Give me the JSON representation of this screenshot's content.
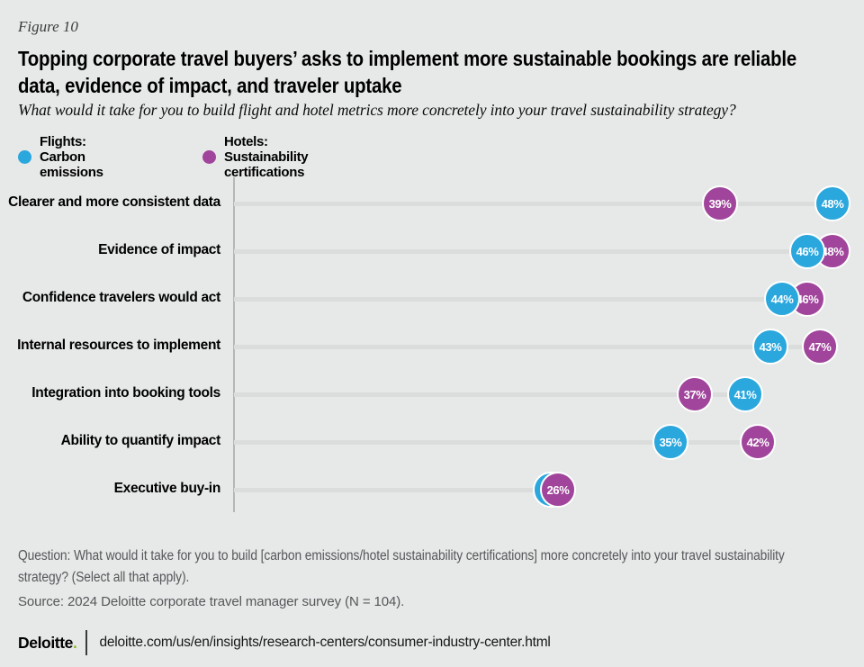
{
  "header": {
    "figure_label": "Figure 10",
    "title": "Topping corporate travel buyers’ asks to implement more sustainable bookings are reliable\ndata, evidence of impact, and traveler uptake",
    "subtitle": "What would it take for you to build flight and hotel metrics more concretely into your travel sustainability strategy?"
  },
  "legend": {
    "flights": "Flights: Carbon emissions",
    "hotels": "Hotels: Sustainability certifications"
  },
  "colors": {
    "background": "#e7e8e8",
    "flights_blue": "#2aa7dd",
    "hotels_purple": "#a0459b",
    "track_gray": "#dbdcdc",
    "axis_gray": "#b5b6b6",
    "brand_green": "#86bc25"
  },
  "chart_data": {
    "type": "scatter",
    "subtype": "dumbbell-dot-plot",
    "unit": "%",
    "xlim": [
      0,
      50
    ],
    "grid": false,
    "legend_position": "top-left",
    "series": [
      {
        "id": "flights",
        "name": "Flights: Carbon emissions",
        "color": "#2aa7dd"
      },
      {
        "id": "hotels",
        "name": "Hotels: Sustainability certifications",
        "color": "#a0459b"
      }
    ],
    "categories": [
      "Clearer and more consistent data",
      "Evidence of impact",
      "Confidence travelers would act",
      "Internal resources to implement",
      "Integration into booking tools",
      "Ability to quantify impact",
      "Executive buy-in"
    ],
    "rows": [
      {
        "category": "Clearer and more consistent data",
        "points": [
          {
            "series": "hotels",
            "value": 39,
            "label": "39%"
          },
          {
            "series": "flights",
            "value": 48,
            "label": "48%"
          }
        ]
      },
      {
        "category": "Evidence of impact",
        "points": [
          {
            "series": "hotels",
            "value": 48,
            "label": "48%"
          },
          {
            "series": "flights",
            "value": 46,
            "label": "46%",
            "front": true
          }
        ]
      },
      {
        "category": "Confidence travelers would act",
        "points": [
          {
            "series": "hotels",
            "value": 46,
            "label": "46%"
          },
          {
            "series": "flights",
            "value": 44,
            "label": "44%",
            "front": true
          }
        ]
      },
      {
        "category": "Internal resources to implement",
        "points": [
          {
            "series": "flights",
            "value": 43,
            "label": "43%"
          },
          {
            "series": "hotels",
            "value": 47,
            "label": "47%"
          }
        ]
      },
      {
        "category": "Integration into booking tools",
        "points": [
          {
            "series": "hotels",
            "value": 37,
            "label": "37%"
          },
          {
            "series": "flights",
            "value": 41,
            "label": "41%"
          }
        ]
      },
      {
        "category": "Ability to quantify impact",
        "points": [
          {
            "series": "flights",
            "value": 35,
            "label": "35%"
          },
          {
            "series": "hotels",
            "value": 42,
            "label": "42%"
          }
        ]
      },
      {
        "category": "Executive buy-in",
        "points": [
          {
            "series": "flights",
            "value": 26,
            "label": "26%",
            "show_label": false,
            "dx": -8
          },
          {
            "series": "hotels",
            "value": 26,
            "label": "26%",
            "front": true
          }
        ]
      }
    ]
  },
  "footer": {
    "question": "Question: What would it take for you to build [carbon emissions/hotel sustainability certifications] more concretely into your travel sustainability\nstrategy? (Select all that apply).",
    "source": "Source: 2024 Deloitte corporate travel manager survey (N = 104).",
    "brand": "Deloitte",
    "brand_dot": ".",
    "url": "deloitte.com/us/en/insights/research-centers/consumer-industry-center.html"
  }
}
